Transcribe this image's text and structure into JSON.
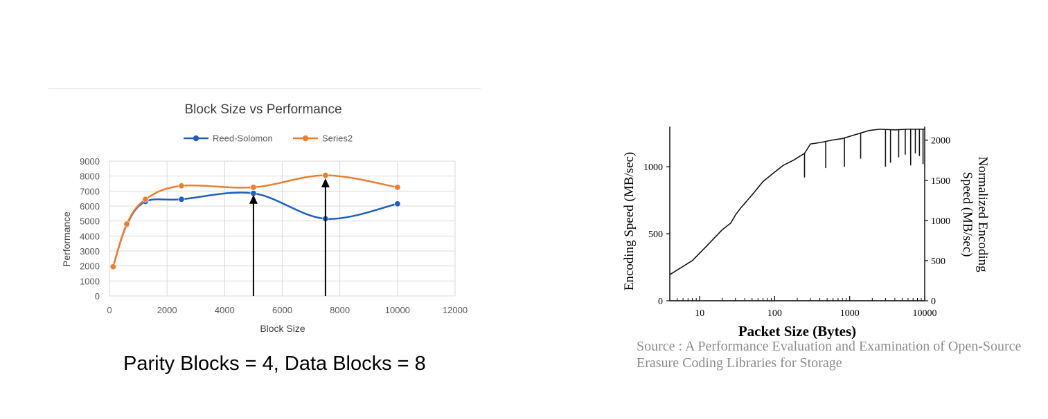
{
  "slide": {
    "caption": "Parity Blocks = 4, Data Blocks = 8",
    "source_note": "Source : A Performance Evaluation and Examination of Open-Source Erasure Coding Libraries for Storage"
  },
  "colors": {
    "reed_solomon": "#1f5fbf",
    "series2": "#ed7d31",
    "gridline": "#d9d9d9",
    "axis_text": "#595959",
    "title_text": "#404040",
    "arrow": "#000000",
    "scan_line": "#111111"
  },
  "chart_data": [
    {
      "type": "line",
      "title": "Block Size vs Performance",
      "xlabel": "Block Size",
      "ylabel": "Performance",
      "xlim": [
        0,
        12000
      ],
      "ylim": [
        0,
        9000
      ],
      "xticks": [
        0,
        2000,
        4000,
        6000,
        8000,
        10000,
        12000
      ],
      "yticks": [
        0,
        1000,
        2000,
        3000,
        4000,
        5000,
        6000,
        7000,
        8000,
        9000
      ],
      "grid": true,
      "legend_position": "top",
      "smooth": true,
      "series": [
        {
          "name": "Reed-Solomon",
          "color": "#1f5fbf",
          "points": [
            [
              128,
              1950
            ],
            [
              600,
              4750
            ],
            [
              1250,
              6300
            ],
            [
              2500,
              6450
            ],
            [
              5000,
              6850
            ],
            [
              7500,
              5150
            ],
            [
              10000,
              6150
            ]
          ]
        },
        {
          "name": "Series2",
          "color": "#ed7d31",
          "points": [
            [
              128,
              1950
            ],
            [
              600,
              4800
            ],
            [
              1250,
              6450
            ],
            [
              2500,
              7350
            ],
            [
              5000,
              7250
            ],
            [
              7500,
              8050
            ],
            [
              10000,
              7250
            ]
          ]
        }
      ],
      "annotations": [
        {
          "type": "arrow",
          "x": 5000,
          "y_from": 0,
          "y_to": 6750
        },
        {
          "type": "arrow",
          "x": 7500,
          "y_from": 0,
          "y_to": 7850
        }
      ]
    },
    {
      "type": "line",
      "title": "",
      "xlabel": "Packet Size (Bytes)",
      "ylabel": "Encoding Speed (MB/sec)",
      "ylabel_right": "Normalized Encoding Speed (MB/sec)",
      "x_scale": "log",
      "xlim": [
        4,
        10000
      ],
      "ylim": [
        0,
        1300
      ],
      "ylim_right": [
        0,
        2170
      ],
      "xticks": [
        10,
        100,
        1000,
        10000
      ],
      "yticks": [
        0,
        500,
        1000
      ],
      "yticks_right": [
        0,
        500,
        1000,
        1500,
        2000
      ],
      "grid": false,
      "series": [
        {
          "color": "#111111",
          "points": [
            [
              4,
              195
            ],
            [
              8,
              300
            ],
            [
              12,
              400
            ],
            [
              20,
              530
            ],
            [
              26,
              580
            ],
            [
              30,
              640
            ],
            [
              35,
              690
            ],
            [
              50,
              790
            ],
            [
              70,
              890
            ],
            [
              100,
              960
            ],
            [
              130,
              1010
            ],
            [
              180,
              1050
            ],
            [
              250,
              1100
            ],
            [
              300,
              1170
            ],
            [
              400,
              1180
            ],
            [
              600,
              1200
            ],
            [
              800,
              1210
            ],
            [
              1200,
              1240
            ],
            [
              1800,
              1270
            ],
            [
              2500,
              1280
            ],
            [
              4000,
              1275
            ],
            [
              6000,
              1280
            ],
            [
              10000,
              1280
            ]
          ],
          "dips": [
            [
              250,
              920
            ],
            [
              480,
              990
            ],
            [
              850,
              1000
            ],
            [
              1400,
              1060
            ],
            [
              3000,
              1000
            ],
            [
              3500,
              1030
            ],
            [
              4500,
              1070
            ],
            [
              5500,
              1090
            ],
            [
              6500,
              1010
            ],
            [
              7500,
              1100
            ],
            [
              8500,
              1080
            ],
            [
              9500,
              1020
            ]
          ]
        }
      ]
    }
  ]
}
